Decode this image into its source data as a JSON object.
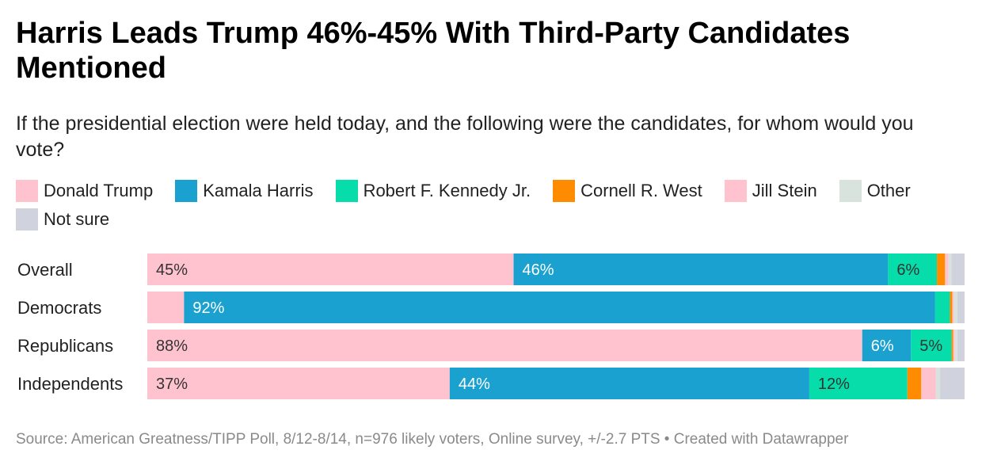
{
  "title": "Harris Leads Trump 46%-45% With Third-Party Candidates Mentioned",
  "subtitle": "If the presidential election were held today, and the following were the candidates, for whom would you vote?",
  "source": "Source: American Greatness/TIPP Poll, 8/12-8/14, n=976 likely voters, Online survey, +/-2.7 PTS • Created with Datawrapper",
  "chart_data": {
    "type": "bar",
    "orientation": "horizontal",
    "stacked": true,
    "unit": "%",
    "xlim": [
      0,
      100
    ],
    "categories": [
      "Overall",
      "Democrats",
      "Republicans",
      "Independents"
    ],
    "series": [
      {
        "name": "Donald Trump",
        "color": "#ffc3d0",
        "text_color": "#333333",
        "values": [
          45,
          4.5,
          88,
          37
        ],
        "labels": [
          "45%",
          "",
          "88%",
          "37%"
        ]
      },
      {
        "name": "Kamala Harris",
        "color": "#1aa1cf",
        "text_color": "#ffffff",
        "values": [
          46,
          92,
          6,
          44
        ],
        "labels": [
          "46%",
          "92%",
          "6%",
          "44%"
        ]
      },
      {
        "name": "Robert F. Kennedy Jr.",
        "color": "#06ddaa",
        "text_color": "#333333",
        "values": [
          6,
          1.8,
          5,
          12
        ],
        "labels": [
          "6%",
          "",
          "5%",
          "12%"
        ]
      },
      {
        "name": "Cornell R. West",
        "color": "#ff8c00",
        "text_color": "#333333",
        "values": [
          1,
          0.3,
          0.2,
          1.7
        ],
        "labels": [
          "",
          "",
          "",
          ""
        ]
      },
      {
        "name": "Jill Stein",
        "color": "#ffc3d0",
        "text_color": "#333333",
        "values": [
          0.4,
          0.2,
          0.2,
          1.8
        ],
        "labels": [
          "",
          "",
          "",
          ""
        ]
      },
      {
        "name": "Other",
        "color": "#d8e3dd",
        "text_color": "#333333",
        "values": [
          0.4,
          0.4,
          0.3,
          0.5
        ],
        "labels": [
          "",
          "",
          "",
          ""
        ]
      },
      {
        "name": "Not sure",
        "color": "#d0d2de",
        "text_color": "#333333",
        "values": [
          1.6,
          0.9,
          0.9,
          3
        ],
        "labels": [
          "",
          "",
          "",
          ""
        ]
      }
    ]
  }
}
